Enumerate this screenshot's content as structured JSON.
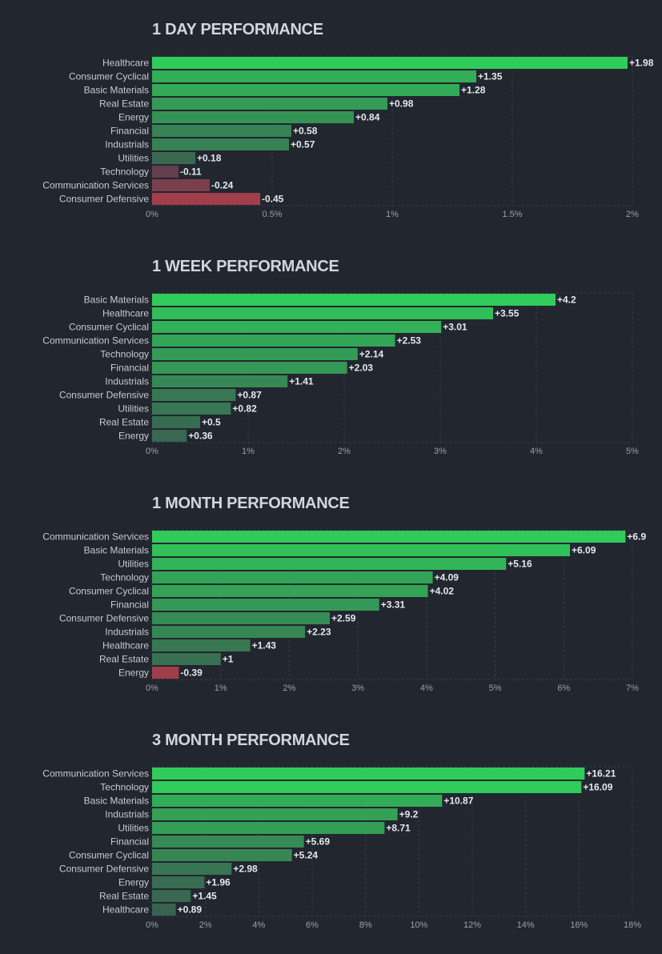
{
  "chart_data": [
    {
      "type": "bar",
      "orientation": "horizontal",
      "title": "1 DAY PERFORMANCE",
      "categories": [
        "Healthcare",
        "Consumer Cyclical",
        "Basic Materials",
        "Real Estate",
        "Energy",
        "Financial",
        "Industrials",
        "Utilities",
        "Technology",
        "Communication Services",
        "Consumer Defensive"
      ],
      "values": [
        1.98,
        1.35,
        1.28,
        0.98,
        0.84,
        0.58,
        0.57,
        0.18,
        -0.11,
        -0.24,
        -0.45
      ],
      "value_labels": [
        "+1.98",
        "+1.35",
        "+1.28",
        "+0.98",
        "+0.84",
        "+0.58",
        "+0.57",
        "+0.18",
        "-0.11",
        "-0.24",
        "-0.45"
      ],
      "xlim": [
        0,
        2
      ],
      "xticks": [
        0,
        0.5,
        1,
        1.5,
        2
      ],
      "xtick_labels": [
        "0%",
        "0.5%",
        "1%",
        "1.5%",
        "2%"
      ],
      "grid": true
    },
    {
      "type": "bar",
      "orientation": "horizontal",
      "title": "1 WEEK PERFORMANCE",
      "categories": [
        "Basic Materials",
        "Healthcare",
        "Consumer Cyclical",
        "Communication Services",
        "Technology",
        "Financial",
        "Industrials",
        "Consumer Defensive",
        "Utilities",
        "Real Estate",
        "Energy"
      ],
      "values": [
        4.2,
        3.55,
        3.01,
        2.53,
        2.14,
        2.03,
        1.41,
        0.87,
        0.82,
        0.5,
        0.36
      ],
      "value_labels": [
        "+4.2",
        "+3.55",
        "+3.01",
        "+2.53",
        "+2.14",
        "+2.03",
        "+1.41",
        "+0.87",
        "+0.82",
        "+0.5",
        "+0.36"
      ],
      "xlim": [
        0,
        5
      ],
      "xticks": [
        0,
        1,
        2,
        3,
        4,
        5
      ],
      "xtick_labels": [
        "0%",
        "1%",
        "2%",
        "3%",
        "4%",
        "5%"
      ],
      "grid": true
    },
    {
      "type": "bar",
      "orientation": "horizontal",
      "title": "1 MONTH PERFORMANCE",
      "categories": [
        "Communication Services",
        "Basic Materials",
        "Utilities",
        "Technology",
        "Consumer Cyclical",
        "Financial",
        "Consumer Defensive",
        "Industrials",
        "Healthcare",
        "Real Estate",
        "Energy"
      ],
      "values": [
        6.9,
        6.09,
        5.16,
        4.09,
        4.02,
        3.31,
        2.59,
        2.23,
        1.43,
        1,
        -0.39
      ],
      "value_labels": [
        "+6.9",
        "+6.09",
        "+5.16",
        "+4.09",
        "+4.02",
        "+3.31",
        "+2.59",
        "+2.23",
        "+1.43",
        "+1",
        "-0.39"
      ],
      "xlim": [
        0,
        7
      ],
      "xticks": [
        0,
        1,
        2,
        3,
        4,
        5,
        6,
        7
      ],
      "xtick_labels": [
        "0%",
        "1%",
        "2%",
        "3%",
        "4%",
        "5%",
        "6%",
        "7%"
      ],
      "grid": true
    },
    {
      "type": "bar",
      "orientation": "horizontal",
      "title": "3 MONTH PERFORMANCE",
      "categories": [
        "Communication Services",
        "Technology",
        "Basic Materials",
        "Industrials",
        "Utilities",
        "Financial",
        "Consumer Cyclical",
        "Consumer Defensive",
        "Energy",
        "Real Estate",
        "Healthcare"
      ],
      "values": [
        16.21,
        16.09,
        10.87,
        9.2,
        8.71,
        5.69,
        5.24,
        2.98,
        1.96,
        1.45,
        0.89
      ],
      "value_labels": [
        "+16.21",
        "+16.09",
        "+10.87",
        "+9.2",
        "+8.71",
        "+5.69",
        "+5.24",
        "+2.98",
        "+1.96",
        "+1.45",
        "+0.89"
      ],
      "xlim": [
        0,
        18
      ],
      "xticks": [
        0,
        2,
        4,
        6,
        8,
        10,
        12,
        14,
        16,
        18
      ],
      "xtick_labels": [
        "0%",
        "2%",
        "4%",
        "6%",
        "8%",
        "10%",
        "12%",
        "14%",
        "16%",
        "18%"
      ],
      "grid": true
    }
  ],
  "colors": {
    "background": "#22262f",
    "positive_strong": "#30cc5a",
    "positive_weak": "#3a5750",
    "negative_strong": "#a03f4b",
    "negative_weak": "#4f3e4e",
    "grid": "#3a3f4b"
  }
}
